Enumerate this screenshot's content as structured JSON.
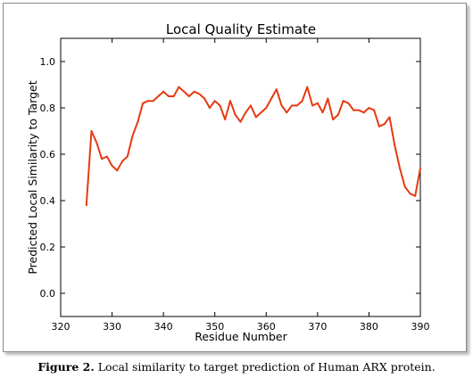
{
  "chart_data": {
    "type": "line",
    "title": "Local Quality Estimate",
    "xlabel": "Residue Number",
    "ylabel": "Predicted Local Similarity to Target",
    "xlim": [
      320,
      390
    ],
    "ylim": [
      -0.1,
      1.1
    ],
    "xticks": [
      "320",
      "330",
      "340",
      "350",
      "360",
      "370",
      "380",
      "390"
    ],
    "yticks": [
      "0.0",
      "0.2",
      "0.4",
      "0.6",
      "0.8",
      "1.0"
    ],
    "grid": false,
    "line_color": "#e63a12",
    "series": [
      {
        "x": [
          325,
          326,
          327,
          328,
          329,
          330,
          331,
          332,
          333,
          334,
          335,
          336,
          337,
          338,
          339,
          340,
          341,
          342,
          343,
          344,
          345,
          346,
          347,
          348,
          349,
          350,
          351,
          352,
          353,
          354,
          355,
          356,
          357,
          358,
          359,
          360,
          361,
          362,
          363,
          364,
          365,
          366,
          367,
          368,
          369,
          370,
          371,
          372,
          373,
          374,
          375,
          376,
          377,
          378,
          379,
          380,
          381,
          382,
          383,
          384,
          385,
          386,
          387,
          388,
          389,
          390
        ],
        "y": [
          0.38,
          0.7,
          0.65,
          0.58,
          0.59,
          0.55,
          0.53,
          0.57,
          0.59,
          0.68,
          0.74,
          0.82,
          0.83,
          0.83,
          0.85,
          0.87,
          0.85,
          0.85,
          0.89,
          0.87,
          0.85,
          0.87,
          0.86,
          0.84,
          0.8,
          0.83,
          0.81,
          0.75,
          0.83,
          0.77,
          0.74,
          0.78,
          0.81,
          0.76,
          0.78,
          0.8,
          0.84,
          0.88,
          0.81,
          0.78,
          0.81,
          0.81,
          0.83,
          0.89,
          0.81,
          0.82,
          0.78,
          0.84,
          0.75,
          0.77,
          0.83,
          0.82,
          0.79,
          0.79,
          0.78,
          0.8,
          0.79,
          0.72,
          0.73,
          0.76,
          0.64,
          0.54,
          0.46,
          0.43,
          0.42,
          0.54
        ]
      }
    ]
  },
  "caption": {
    "label": "Figure 2.",
    "text": " Local similarity to target prediction of Human ARX protein."
  }
}
